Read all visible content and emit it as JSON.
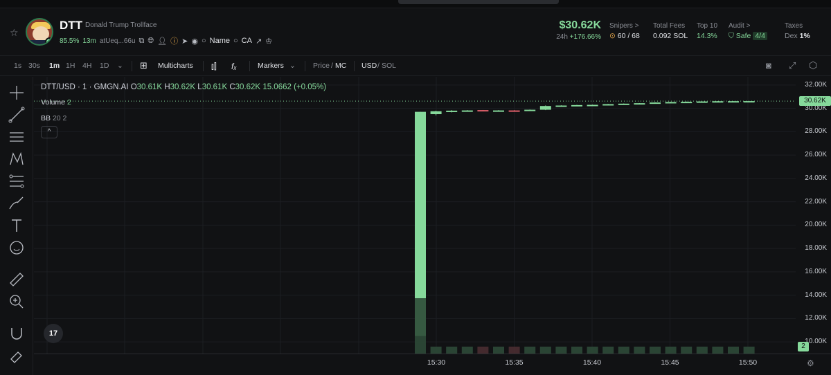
{
  "token": {
    "symbol": "DTT",
    "name": "Donald Trump Trollface",
    "holder_pct": "85.5%",
    "age": "13m",
    "address": "atUeq...66u",
    "name_search": "Name",
    "ca_search": "CA"
  },
  "market": {
    "price": "$30.62K",
    "change_label": "24h",
    "change": "+176.66%",
    "snipers_label": "Snipers >",
    "snipers": "60 / 68",
    "fees_label": "Total Fees",
    "fees": "0.092 SOL",
    "top10_label": "Top 10",
    "top10": "14.3%",
    "audit_label": "Audit >",
    "audit_status": "Safe",
    "audit_score": "4/4",
    "taxes_label": "Taxes",
    "dex_label": "Dex",
    "dex_value": "1%"
  },
  "toolbar": {
    "intervals": [
      "1s",
      "30s",
      "1m",
      "1H",
      "4H",
      "1D"
    ],
    "active_interval": "1m",
    "multicharts": "Multicharts",
    "markers": "Markers",
    "price": "Price",
    "mc": "MC",
    "usd": "USD",
    "sol": "SOL"
  },
  "legend": {
    "pair": "DTT/USD · 1 · GMGN.AI",
    "o_label": "O",
    "o": "30.61K",
    "h_label": "H",
    "h": "30.62K",
    "l_label": "L",
    "l": "30.61K",
    "c_label": "C",
    "c": "30.62K",
    "delta": "15.0662 (+0.05%)",
    "volume_label": "Volume",
    "volume": "2",
    "bb_label": "BB",
    "bb": "20 2",
    "collapse": "^"
  },
  "colors": {
    "up": "#86d99b",
    "down": "#e0606b",
    "bg": "#111214"
  },
  "chart_data": {
    "type": "candlestick",
    "y_ticks": [
      "32.00K",
      "30.00K",
      "28.00K",
      "26.00K",
      "24.00K",
      "22.00K",
      "20.00K",
      "18.00K",
      "16.00K",
      "14.00K",
      "12.00K",
      "10.00K"
    ],
    "ylim": [
      9000,
      32700
    ],
    "x_ticks": [
      "15:30",
      "15:35",
      "15:40",
      "15:45",
      "15:50"
    ],
    "current_price": "30.62K",
    "current_volume": "2",
    "candles": [
      {
        "o": 10500,
        "h": 29700,
        "l": 10500,
        "c": 29700,
        "vol": 8
      },
      {
        "o": 29500,
        "h": 29800,
        "l": 29400,
        "c": 29750,
        "vol": 1
      },
      {
        "o": 29700,
        "h": 29850,
        "l": 29650,
        "c": 29800,
        "vol": 1
      },
      {
        "o": 29800,
        "h": 29850,
        "l": 29750,
        "c": 29820,
        "vol": 1
      },
      {
        "o": 29850,
        "h": 29860,
        "l": 29780,
        "c": 29800,
        "vol": 1
      },
      {
        "o": 29800,
        "h": 29850,
        "l": 29780,
        "c": 29820,
        "vol": 1
      },
      {
        "o": 29820,
        "h": 29850,
        "l": 29790,
        "c": 29800,
        "vol": 1
      },
      {
        "o": 29800,
        "h": 29900,
        "l": 29780,
        "c": 29880,
        "vol": 1
      },
      {
        "o": 29880,
        "h": 30250,
        "l": 29850,
        "c": 30200,
        "vol": 1
      },
      {
        "o": 30200,
        "h": 30260,
        "l": 30150,
        "c": 30240,
        "vol": 1
      },
      {
        "o": 30240,
        "h": 30300,
        "l": 30200,
        "c": 30280,
        "vol": 1
      },
      {
        "o": 30280,
        "h": 30320,
        "l": 30250,
        "c": 30300,
        "vol": 1
      },
      {
        "o": 30300,
        "h": 30380,
        "l": 30280,
        "c": 30360,
        "vol": 1
      },
      {
        "o": 30360,
        "h": 30420,
        "l": 30340,
        "c": 30400,
        "vol": 1
      },
      {
        "o": 30400,
        "h": 30450,
        "l": 30380,
        "c": 30440,
        "vol": 1
      },
      {
        "o": 30440,
        "h": 30520,
        "l": 30420,
        "c": 30500,
        "vol": 1
      },
      {
        "o": 30500,
        "h": 30560,
        "l": 30480,
        "c": 30540,
        "vol": 1
      },
      {
        "o": 30540,
        "h": 30580,
        "l": 30520,
        "c": 30560,
        "vol": 1
      },
      {
        "o": 30560,
        "h": 30600,
        "l": 30540,
        "c": 30590,
        "vol": 1
      },
      {
        "o": 30590,
        "h": 30620,
        "l": 30570,
        "c": 30610,
        "vol": 1
      },
      {
        "o": 30610,
        "h": 30620,
        "l": 30600,
        "c": 30615,
        "vol": 1
      },
      {
        "o": 30610,
        "h": 30620,
        "l": 30610,
        "c": 30620,
        "vol": 1
      }
    ]
  }
}
